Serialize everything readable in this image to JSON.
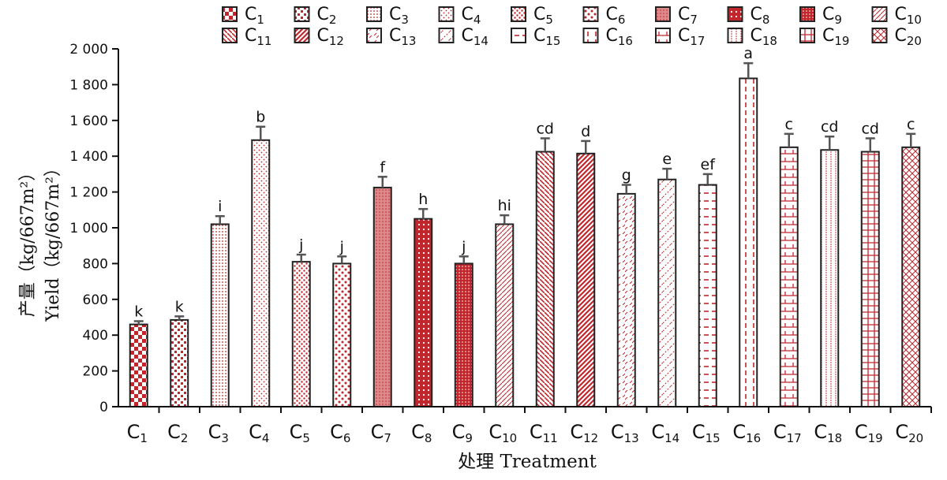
{
  "chart_data": {
    "type": "bar",
    "categories": [
      "C1",
      "C2",
      "C3",
      "C4",
      "C5",
      "C6",
      "C7",
      "C8",
      "C9",
      "C10",
      "C11",
      "C12",
      "C13",
      "C14",
      "C15",
      "C16",
      "C17",
      "C18",
      "C19",
      "C20"
    ],
    "values": [
      460,
      485,
      1020,
      1490,
      810,
      800,
      1225,
      1050,
      800,
      1020,
      1425,
      1415,
      1190,
      1270,
      1240,
      1835,
      1450,
      1435,
      1425,
      1450
    ],
    "error": [
      18,
      20,
      45,
      75,
      40,
      40,
      60,
      55,
      40,
      50,
      75,
      70,
      50,
      60,
      60,
      85,
      75,
      75,
      75,
      75
    ],
    "significance": [
      "k",
      "k",
      "i",
      "b",
      "j",
      "j",
      "f",
      "h",
      "j",
      "hi",
      "cd",
      "d",
      "g",
      "e",
      "ef",
      "a",
      "c",
      "cd",
      "cd",
      "c"
    ],
    "legend": [
      "C1",
      "C2",
      "C3",
      "C4",
      "C5",
      "C6",
      "C7",
      "C8",
      "C9",
      "C10",
      "C11",
      "C12",
      "C13",
      "C14",
      "C15",
      "C16",
      "C17",
      "C18",
      "C19",
      "C20"
    ],
    "ylim": [
      0,
      2000
    ],
    "yticks": [
      "0",
      "200",
      "400",
      "600",
      "800",
      "1 000",
      "1 200",
      "1 400",
      "1 600",
      "1 800",
      "2 000"
    ],
    "ylabel_cn": "产量（kg/667m²）",
    "ylabel_en": "Yield（kg/667m²）",
    "xlabel": "处理 Treatment",
    "legend_position": "top",
    "grid": false,
    "colors": {
      "bar": "#c0262c",
      "outline": "#222222",
      "error": "#555555"
    }
  }
}
